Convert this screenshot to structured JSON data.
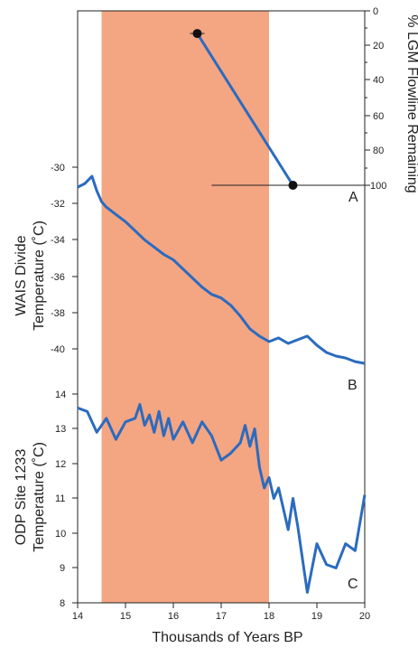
{
  "chart_data": [
    {
      "panel": "A",
      "type": "line",
      "xlabel": "",
      "ylabel": "% LGM Flowline Remaining",
      "xlim": [
        14,
        20
      ],
      "ylim": [
        0,
        100
      ],
      "y_reversed": true,
      "y_ticks": [
        "0",
        "20",
        "40",
        "60",
        "80",
        "100"
      ],
      "series": [
        {
          "x": [
            16.5,
            18.5
          ],
          "y": [
            13,
            100
          ],
          "x_err": [
            0.15,
            1.7
          ],
          "color": "#2b6bbf"
        }
      ]
    },
    {
      "panel": "B",
      "type": "line",
      "xlabel": "",
      "ylabel": "WAIS Divide Temperature (˚C)",
      "xlim": [
        14,
        20
      ],
      "ylim": [
        -41,
        -30
      ],
      "y_ticks": [
        "-30",
        "-32",
        "-34",
        "-36",
        "-38",
        "-40"
      ],
      "series": [
        {
          "x": [
            14.0,
            14.15,
            14.3,
            14.4,
            14.5,
            14.6,
            14.8,
            15.0,
            15.2,
            15.4,
            15.6,
            15.8,
            16.0,
            16.2,
            16.4,
            16.6,
            16.8,
            17.0,
            17.2,
            17.4,
            17.6,
            17.8,
            18.0,
            18.2,
            18.4,
            18.6,
            18.8,
            19.0,
            19.2,
            19.4,
            19.6,
            19.8,
            20.0
          ],
          "y": [
            -31.1,
            -30.9,
            -30.5,
            -31.3,
            -31.9,
            -32.2,
            -32.6,
            -33.0,
            -33.5,
            -34.0,
            -34.4,
            -34.8,
            -35.1,
            -35.6,
            -36.1,
            -36.6,
            -37.0,
            -37.2,
            -37.6,
            -38.2,
            -38.9,
            -39.3,
            -39.6,
            -39.4,
            -39.7,
            -39.5,
            -39.3,
            -39.8,
            -40.2,
            -40.4,
            -40.5,
            -40.7,
            -40.8
          ],
          "color": "#2b6bbf"
        }
      ]
    },
    {
      "panel": "C",
      "type": "line",
      "xlabel": "Thousands of Years BP",
      "ylabel": "ODP Site 1233 Temperature (˚C)",
      "xlim": [
        14,
        20
      ],
      "ylim": [
        8,
        14
      ],
      "y_ticks": [
        "8",
        "9",
        "10",
        "11",
        "12",
        "13",
        "14"
      ],
      "x_ticks": [
        "14",
        "15",
        "16",
        "17",
        "18",
        "19",
        "20"
      ],
      "series": [
        {
          "x": [
            14.0,
            14.2,
            14.4,
            14.6,
            14.8,
            15.0,
            15.2,
            15.3,
            15.4,
            15.5,
            15.6,
            15.7,
            15.8,
            15.9,
            16.0,
            16.2,
            16.4,
            16.6,
            16.8,
            17.0,
            17.2,
            17.4,
            17.5,
            17.6,
            17.7,
            17.8,
            17.9,
            18.0,
            18.1,
            18.2,
            18.4,
            18.5,
            18.6,
            18.8,
            19.0,
            19.2,
            19.4,
            19.6,
            19.8,
            20.0
          ],
          "y": [
            13.6,
            13.5,
            12.9,
            13.3,
            12.7,
            13.2,
            13.3,
            13.7,
            13.1,
            13.4,
            12.9,
            13.5,
            12.8,
            13.3,
            12.7,
            13.2,
            12.6,
            13.2,
            12.8,
            12.1,
            12.3,
            12.6,
            13.1,
            12.5,
            13.0,
            11.9,
            11.3,
            11.6,
            11.0,
            11.3,
            10.1,
            11.0,
            10.2,
            8.3,
            9.7,
            9.1,
            9.0,
            9.7,
            9.5,
            11.1
          ],
          "color": "#2b6bbf"
        }
      ]
    }
  ],
  "shaded_interval": {
    "x_start": 14.5,
    "x_end": 18.0,
    "color": "#f4a582"
  },
  "panel_labels": {
    "a": "A",
    "b": "B",
    "c": "C"
  },
  "axis_titles": {
    "x": "Thousands of Years BP",
    "left_top_line1": "WAIS Divide",
    "left_top_line2": "Temperature (˚C)",
    "left_bottom_line1": "ODP Site 1233",
    "left_bottom_line2": "Temperature (˚C)",
    "right": "% LGM Flowline Remaining"
  },
  "ticks": {
    "x": [
      "14",
      "15",
      "16",
      "17",
      "18",
      "19",
      "20"
    ],
    "right": [
      "0",
      "20",
      "40",
      "60",
      "80",
      "100"
    ],
    "left_top": [
      "-30",
      "-32",
      "-34",
      "-36",
      "-38",
      "-40"
    ],
    "left_bottom": [
      "14",
      "13",
      "12",
      "11",
      "10",
      "9",
      "8"
    ]
  },
  "colors": {
    "series": "#2b6bbf",
    "shade": "#f4a582",
    "axis": "#222222"
  }
}
